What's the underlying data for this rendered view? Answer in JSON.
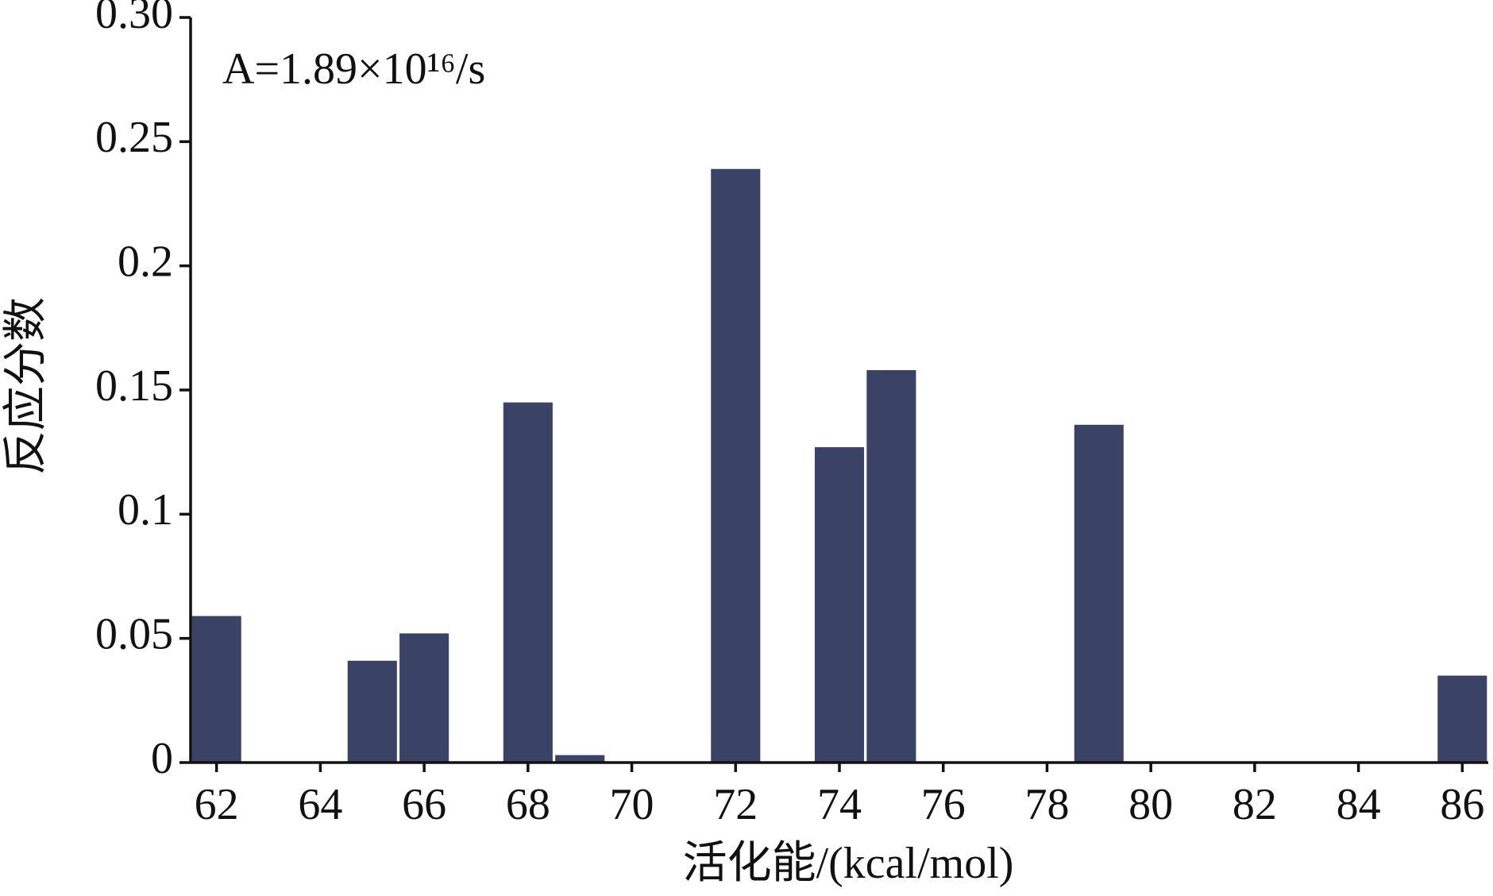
{
  "chart_data": {
    "type": "bar",
    "xlabel": "活化能/(kcal/mol)",
    "ylabel": "反应分数",
    "annotation": "A=1.89×10¹⁶/s",
    "x": [
      62,
      65,
      66,
      68,
      69,
      72,
      74,
      75,
      79,
      86
    ],
    "values": [
      0.059,
      0.041,
      0.052,
      0.145,
      0.003,
      0.239,
      0.127,
      0.158,
      0.136,
      0.035
    ],
    "bar_width": 0.95,
    "color": "#3a4265",
    "xlim": [
      61.5,
      86.5
    ],
    "xticks": [
      62,
      64,
      66,
      68,
      70,
      72,
      74,
      76,
      78,
      80,
      82,
      84,
      86
    ],
    "ylim": [
      0,
      0.3
    ],
    "yticks": [
      0,
      0.05,
      0.1,
      0.15,
      0.2,
      0.25,
      {
        "value": 0.3,
        "label": "0.30"
      }
    ],
    "grid": false
  }
}
